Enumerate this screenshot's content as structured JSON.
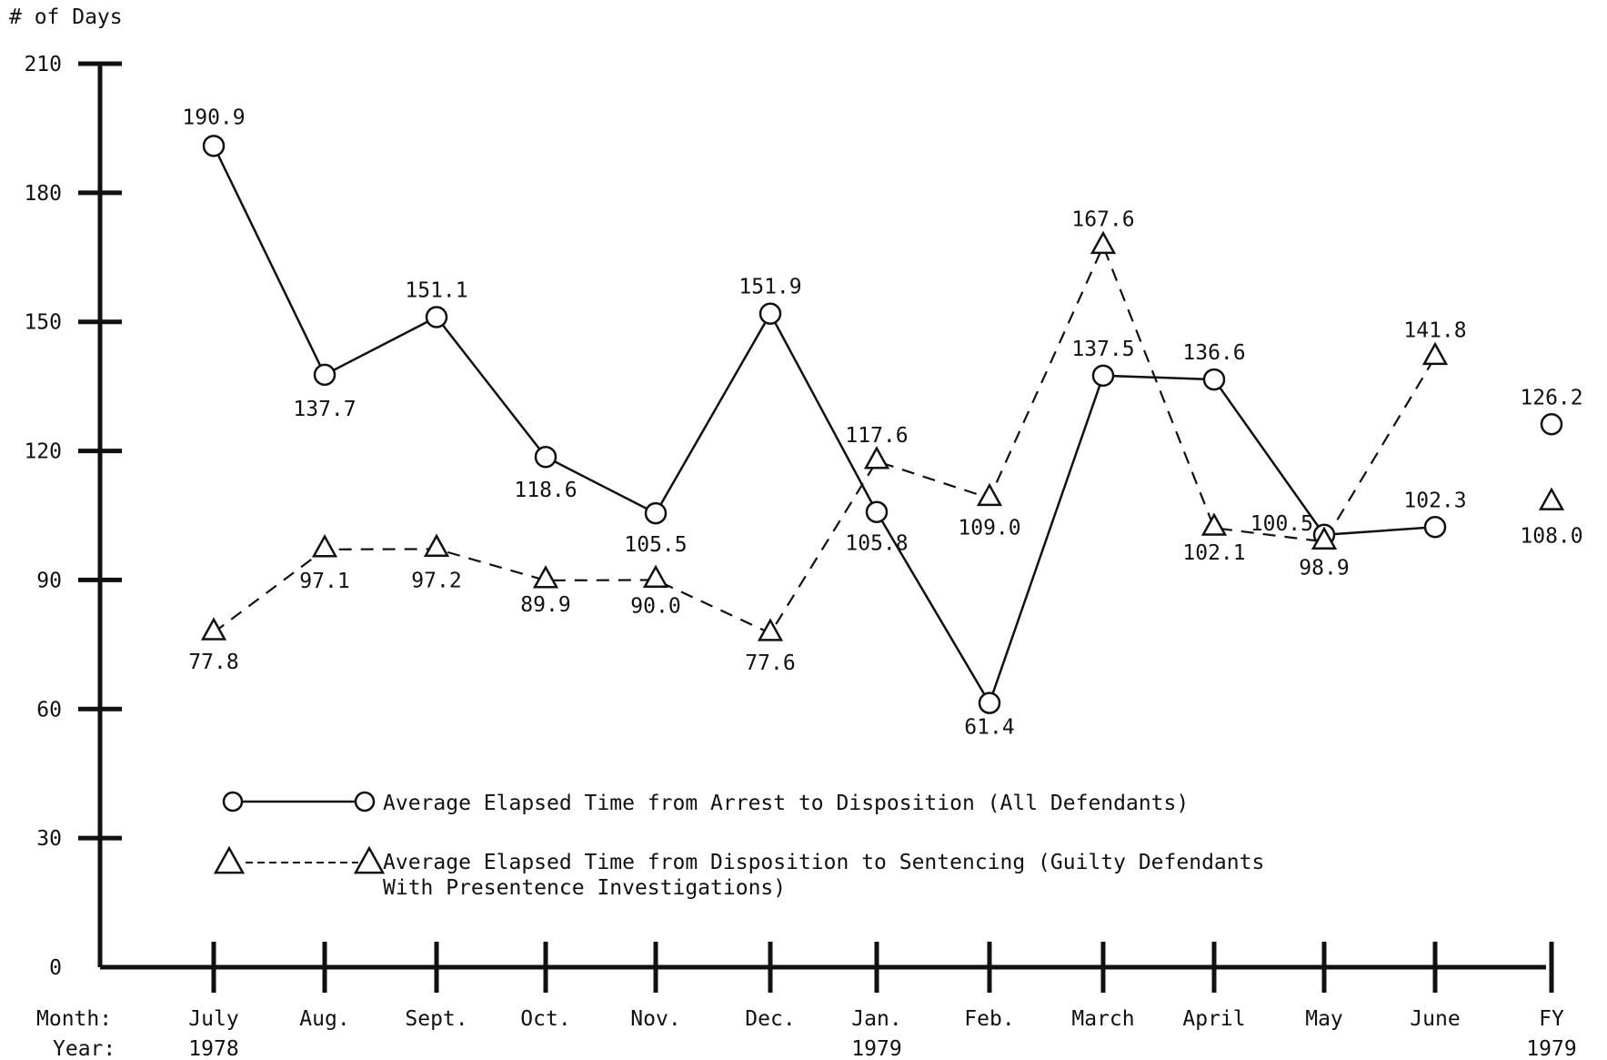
{
  "chart_data": {
    "type": "line",
    "ylabel": "# of Days",
    "ylim": [
      0,
      210
    ],
    "y_ticks": [
      "0",
      "30",
      "60",
      "90",
      "120",
      "150",
      "180",
      "210"
    ],
    "x_row_labels": {
      "month": "Month:",
      "year": "Year:"
    },
    "categories": [
      "July",
      "Aug.",
      "Sept.",
      "Oct.",
      "Nov.",
      "Dec.",
      "Jan.",
      "Feb.",
      "March",
      "April",
      "May",
      "June",
      "FY"
    ],
    "years": [
      "1978",
      "",
      "",
      "",
      "",
      "",
      "1979",
      "",
      "",
      "",
      "",
      "",
      "1979"
    ],
    "grid": false,
    "legend_position": "lower-center",
    "series": [
      {
        "name": "Average Elapsed Time from Arrest to Disposition (All Defendants)",
        "marker": "circle",
        "line": "solid",
        "values": [
          190.9,
          137.7,
          151.1,
          118.6,
          105.5,
          151.9,
          105.8,
          61.4,
          137.5,
          136.6,
          100.5,
          102.3,
          126.2
        ],
        "labels": [
          "190.9",
          "137.7",
          "151.1",
          "118.6",
          "105.5",
          "151.9",
          "105.8",
          "61.4",
          "137.5",
          "136.6",
          "100.5",
          "102.3",
          "126.2"
        ]
      },
      {
        "name": "Average Elapsed Time from Disposition to Sentencing (Guilty Defendants With Presentence Investigations)",
        "name_lines": [
          "Average Elapsed Time from Disposition to Sentencing (Guilty Defendants",
          "With Presentence Investigations)"
        ],
        "marker": "triangle",
        "line": "dashed",
        "values": [
          77.8,
          97.1,
          97.2,
          89.9,
          90.0,
          77.6,
          117.6,
          109.0,
          167.6,
          102.1,
          98.9,
          141.8,
          108.0
        ],
        "labels": [
          "77.8",
          "97.1",
          "97.2",
          "89.9",
          "90.0",
          "77.6",
          "117.6",
          "109.0",
          "167.6",
          "102.1",
          "98.9",
          "141.8",
          "108.0"
        ]
      }
    ]
  }
}
